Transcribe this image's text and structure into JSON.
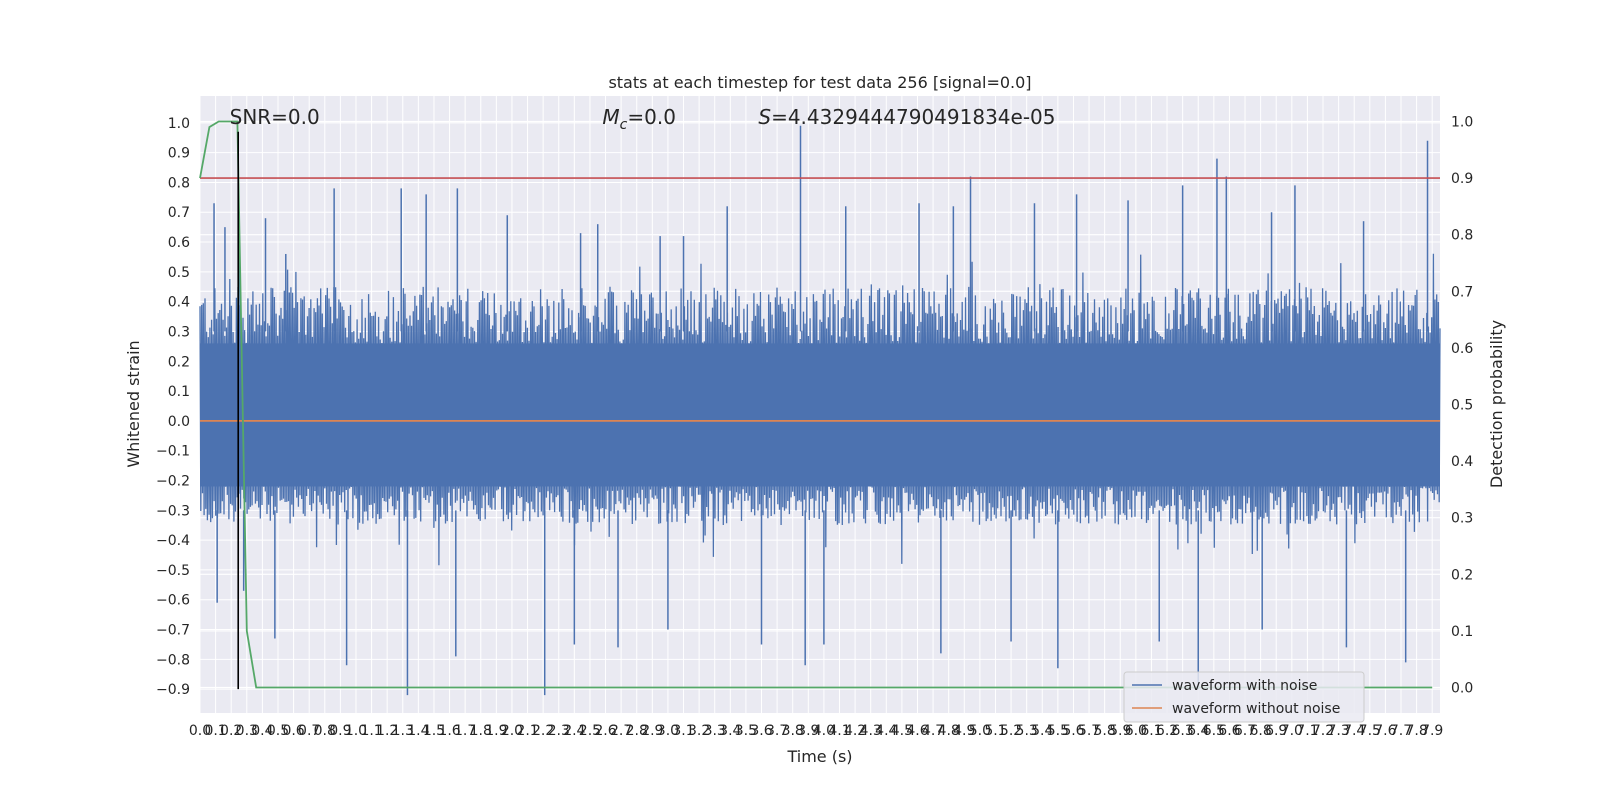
{
  "chart_data": {
    "type": "line",
    "title": "stats at each timestep for test data 256 [signal=0.0]",
    "xlabel": "Time (s)",
    "ylabel": "Whitened strain",
    "y2label": "Detection probability",
    "xlim": [
      0.0,
      7.95
    ],
    "ylim": [
      -0.98,
      1.09
    ],
    "y2lim": [
      -0.045,
      1.045
    ],
    "x_ticks": [
      0.0,
      0.1,
      0.2,
      0.3,
      0.4,
      0.5,
      0.6,
      0.7,
      0.8,
      0.9,
      1.0,
      1.1,
      1.2,
      1.3,
      1.4,
      1.5,
      1.6,
      1.7,
      1.8,
      1.9,
      2.0,
      2.1,
      2.2,
      2.3,
      2.4,
      2.5,
      2.6,
      2.7,
      2.8,
      2.9,
      3.0,
      3.1,
      3.2,
      3.3,
      3.4,
      3.5,
      3.6,
      3.7,
      3.8,
      3.9,
      4.0,
      4.1,
      4.2,
      4.3,
      4.4,
      4.5,
      4.6,
      4.7,
      4.8,
      4.9,
      5.0,
      5.1,
      5.2,
      5.3,
      5.4,
      5.5,
      5.6,
      5.7,
      5.8,
      5.9,
      6.0,
      6.1,
      6.2,
      6.3,
      6.4,
      6.5,
      6.6,
      6.7,
      6.8,
      6.9,
      7.0,
      7.1,
      7.2,
      7.3,
      7.4,
      7.5,
      7.6,
      7.7,
      7.8,
      7.9
    ],
    "x_tick_labels": [
      "0.0",
      "0.1",
      "0.2",
      "0.3",
      "0.4",
      "0.5",
      "0.6",
      "0.7",
      "0.8",
      "0.9",
      "1.0",
      "1.1",
      "1.2",
      "1.3",
      "1.4",
      "1.5",
      "1.6",
      "1.7",
      "1.8",
      "1.9",
      "2.0",
      "2.1",
      "2.2",
      "2.3",
      "2.4",
      "2.5",
      "2.6",
      "2.7",
      "2.8",
      "2.9",
      "3.0",
      "3.1",
      "3.2",
      "3.3",
      "3.4",
      "3.5",
      "3.6",
      "3.7",
      "3.8",
      "3.9",
      "4.0",
      "4.1",
      "4.2",
      "4.3",
      "4.4",
      "4.5",
      "4.6",
      "4.7",
      "4.8",
      "4.9",
      "5.0",
      "5.1",
      "5.2",
      "5.3",
      "5.4",
      "5.5",
      "5.6",
      "5.7",
      "5.8",
      "5.9",
      "6.0",
      "6.1",
      "6.2",
      "6.3",
      "6.4",
      "6.5",
      "6.6",
      "6.7",
      "6.8",
      "6.9",
      "7.0",
      "7.1",
      "7.2",
      "7.3",
      "7.4",
      "7.5",
      "7.6",
      "7.7",
      "7.8",
      "7.9"
    ],
    "y_ticks": [
      1.0,
      0.9,
      0.8,
      0.7,
      0.6,
      0.5,
      0.4,
      0.3,
      0.2,
      0.1,
      0.0,
      -0.1,
      -0.2,
      -0.3,
      -0.4,
      -0.5,
      -0.6,
      -0.7,
      -0.8,
      -0.9
    ],
    "y_tick_labels": [
      "1.0",
      "0.9",
      "0.8",
      "0.7",
      "0.6",
      "0.5",
      "0.4",
      "0.3",
      "0.2",
      "0.1",
      "0.0",
      "−0.1",
      "−0.2",
      "−0.3",
      "−0.4",
      "−0.5",
      "−0.6",
      "−0.7",
      "−0.8",
      "−0.9"
    ],
    "y2_ticks": [
      1.0,
      0.9,
      0.8,
      0.7,
      0.6,
      0.5,
      0.4,
      0.3,
      0.2,
      0.1,
      0.0
    ],
    "y2_tick_labels": [
      "1.0",
      "0.9",
      "0.8",
      "0.7",
      "0.6",
      "0.5",
      "0.4",
      "0.3",
      "0.2",
      "0.1",
      "0.0"
    ],
    "annotations": {
      "snr": {
        "text": "SNR=0.0",
        "x": 0.19,
        "y": 1.0
      },
      "mc": {
        "prefix": "M",
        "sub": "c",
        "suffix": "=0.0",
        "x": 2.58,
        "y": 1.0
      },
      "s": {
        "prefix": "S",
        "suffix": "=4.4329444790491834e-05",
        "x": 3.58,
        "y": 1.0
      }
    },
    "grid": true,
    "background": "#eaeaf2",
    "colors": {
      "noise": "#4c72b0",
      "clean": "#dd8452",
      "prob": "#55a868",
      "threshold": "#c44e52",
      "marker": "#000000"
    },
    "series": [
      {
        "name": "waveform with noise",
        "type": "noise-band",
        "axis": "left",
        "description_values": {
          "x_range": [
            0.0,
            7.95
          ],
          "typical_upper": 0.45,
          "typical_lower": -0.35,
          "core_upper": 0.26,
          "core_lower": -0.22,
          "up_spikes": [
            [
              0.09,
              0.73
            ],
            [
              0.16,
              0.65
            ],
            [
              0.25,
              0.66
            ],
            [
              0.42,
              0.68
            ],
            [
              0.55,
              0.56
            ],
            [
              0.86,
              0.78
            ],
            [
              1.29,
              0.78
            ],
            [
              1.45,
              0.76
            ],
            [
              1.65,
              0.78
            ],
            [
              1.97,
              0.69
            ],
            [
              2.44,
              0.63
            ],
            [
              2.55,
              0.66
            ],
            [
              2.95,
              0.62
            ],
            [
              3.1,
              0.62
            ],
            [
              3.38,
              0.72
            ],
            [
              3.85,
              0.99
            ],
            [
              4.14,
              0.72
            ],
            [
              4.61,
              0.73
            ],
            [
              4.83,
              0.72
            ],
            [
              4.94,
              0.82
            ],
            [
              5.35,
              0.73
            ],
            [
              5.62,
              0.76
            ],
            [
              5.95,
              0.74
            ],
            [
              6.3,
              0.79
            ],
            [
              6.52,
              0.88
            ],
            [
              6.58,
              0.82
            ],
            [
              6.87,
              0.7
            ],
            [
              7.02,
              0.79
            ],
            [
              7.46,
              0.67
            ],
            [
              7.87,
              0.94
            ]
          ],
          "down_spikes": [
            [
              0.11,
              -0.61
            ],
            [
              0.28,
              -0.57
            ],
            [
              0.48,
              -0.73
            ],
            [
              0.94,
              -0.82
            ],
            [
              1.33,
              -0.92
            ],
            [
              1.64,
              -0.79
            ],
            [
              2.21,
              -0.92
            ],
            [
              2.4,
              -0.75
            ],
            [
              2.68,
              -0.76
            ],
            [
              3.0,
              -0.7
            ],
            [
              3.6,
              -0.75
            ],
            [
              3.88,
              -0.82
            ],
            [
              4.0,
              -0.75
            ],
            [
              4.75,
              -0.78
            ],
            [
              5.2,
              -0.74
            ],
            [
              5.5,
              -0.83
            ],
            [
              6.15,
              -0.74
            ],
            [
              6.4,
              -0.9
            ],
            [
              6.81,
              -0.7
            ],
            [
              7.35,
              -0.76
            ],
            [
              7.73,
              -0.81
            ]
          ]
        }
      },
      {
        "name": "waveform without noise",
        "axis": "left",
        "x": [
          0.0,
          7.95
        ],
        "y": [
          0.0,
          0.0
        ]
      },
      {
        "name": "",
        "role": "detection probability",
        "axis": "right",
        "x": [
          0.0,
          0.06,
          0.12,
          0.18,
          0.24,
          0.3,
          0.36,
          7.9
        ],
        "y": [
          0.9,
          0.99,
          1.0,
          1.0,
          1.0,
          0.1,
          0.0,
          0.0
        ]
      },
      {
        "name": "",
        "role": "threshold",
        "axis": "right",
        "x": [
          0.0,
          7.95
        ],
        "y": [
          0.9,
          0.9
        ]
      },
      {
        "name": "",
        "role": "marker",
        "axis": "left",
        "x": [
          0.245,
          0.245
        ],
        "y": [
          -0.9,
          0.97
        ]
      }
    ],
    "legend": {
      "placement": "lower-right",
      "entries": [
        {
          "label": "waveform with noise",
          "color": "#4c72b0"
        },
        {
          "label": "waveform without noise",
          "color": "#dd8452"
        }
      ]
    }
  }
}
